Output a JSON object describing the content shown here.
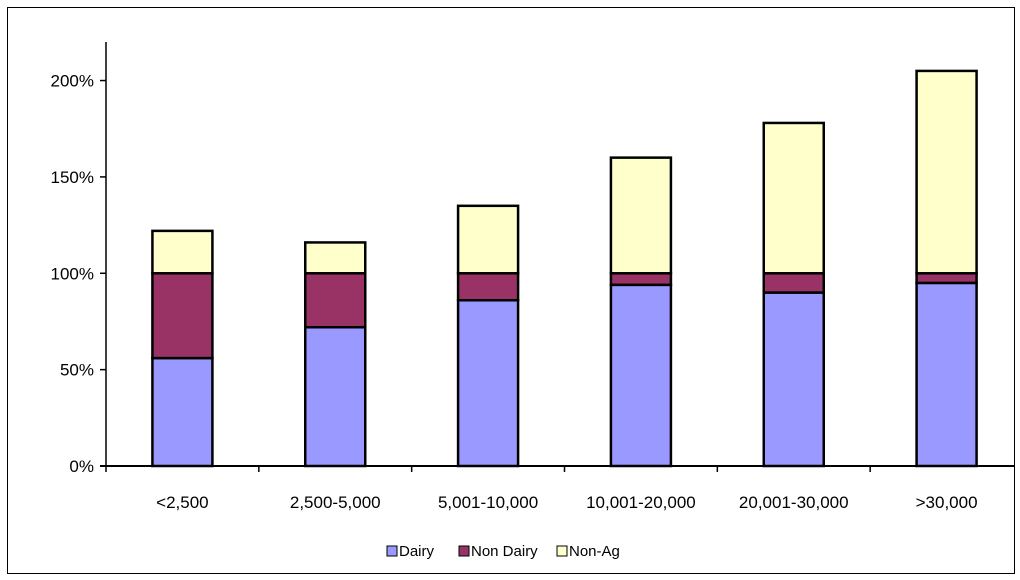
{
  "chart_data": {
    "type": "bar",
    "stacked": true,
    "categories": [
      "<2,500",
      "2,500-5,000",
      "5,001-10,000",
      "10,001-20,000",
      "20,001-30,000",
      ">30,000"
    ],
    "series": [
      {
        "name": "Dairy",
        "color": "#9999ff",
        "values": [
          56,
          72,
          86,
          94,
          90,
          95
        ]
      },
      {
        "name": "Non Dairy",
        "color": "#993366",
        "values": [
          44,
          28,
          14,
          6,
          10,
          5
        ]
      },
      {
        "name": "Non-Ag",
        "color": "#ffffcc",
        "values": [
          22,
          16,
          35,
          60,
          78,
          105
        ]
      }
    ],
    "ylim": [
      0,
      220
    ],
    "yticks": [
      0,
      50,
      100,
      150,
      200
    ],
    "ytick_labels": [
      "0%",
      "50%",
      "100%",
      "150%",
      "200%"
    ],
    "grid": false,
    "legend_position": "bottom"
  }
}
